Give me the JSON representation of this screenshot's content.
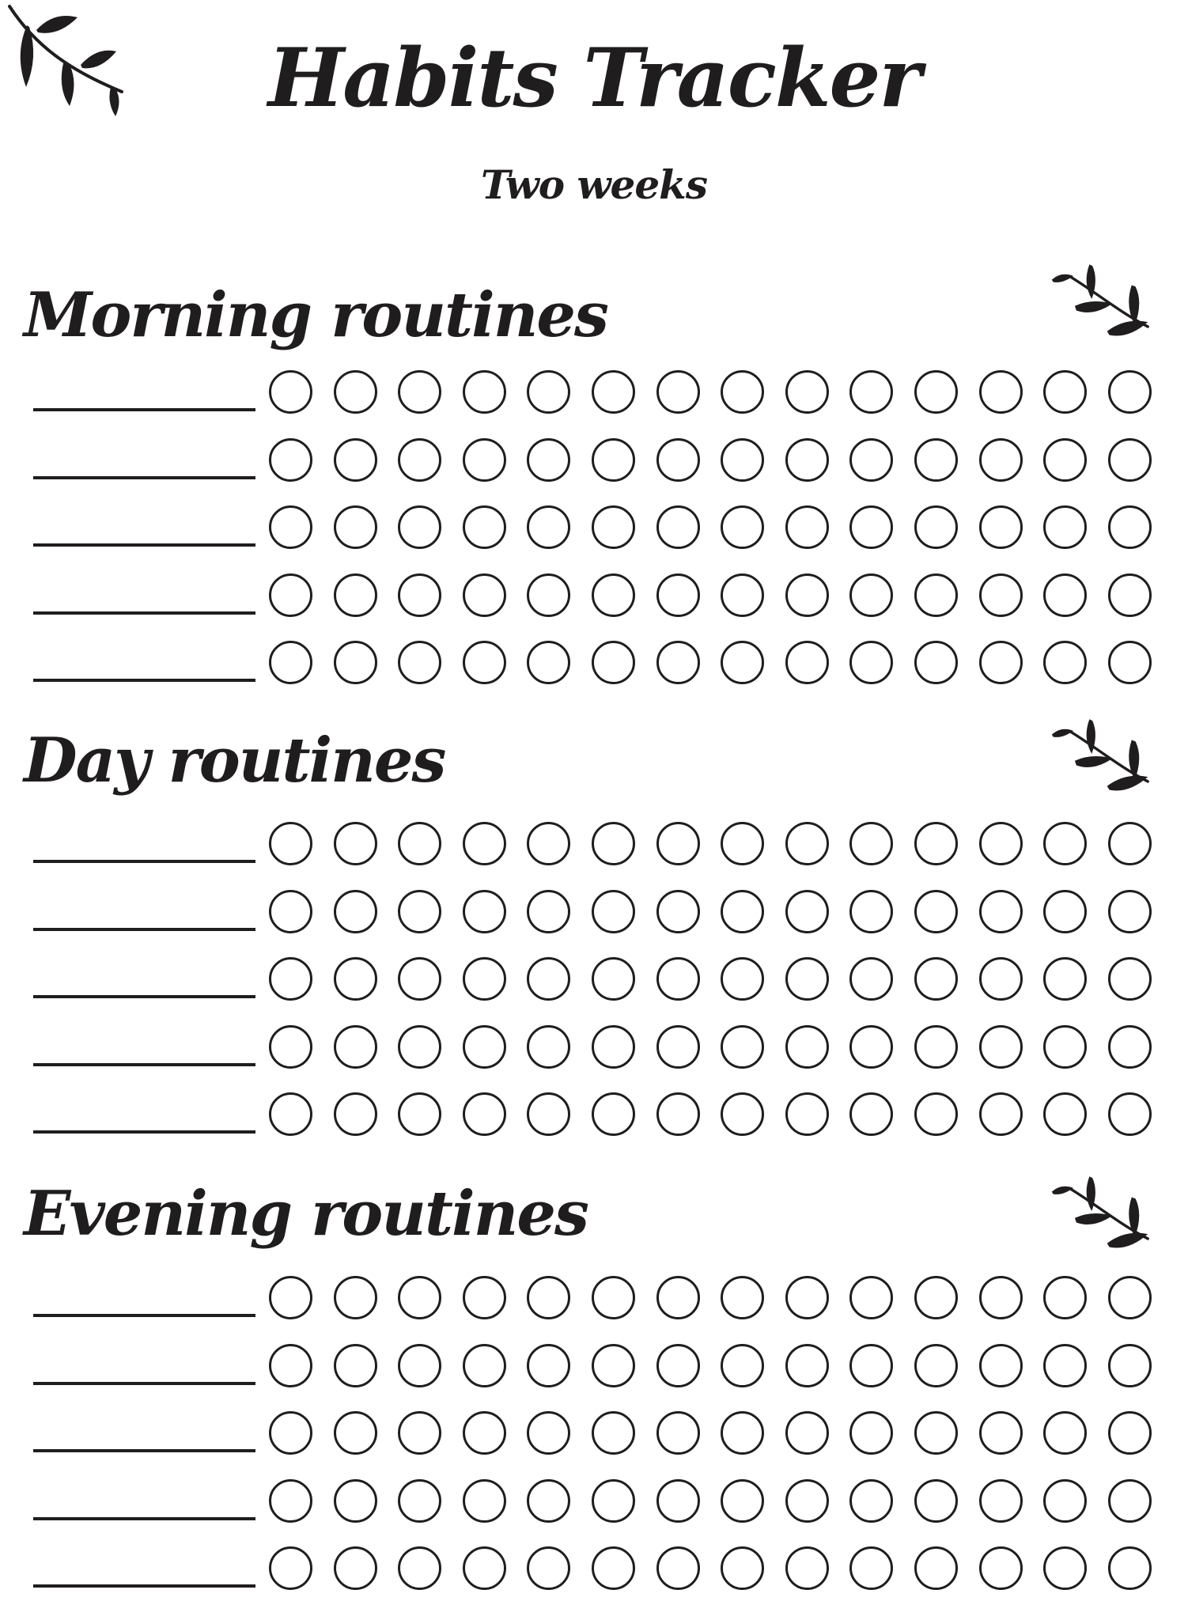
{
  "page": {
    "title": "Habits Tracker",
    "subtitle": "Two weeks"
  },
  "colors": {
    "ink": "#201d1e",
    "paper": "#ffffff"
  },
  "icons": {
    "corner_decoration": "leaf-branch-icon",
    "section_decoration": "leaf-branch-icon"
  },
  "sections": [
    {
      "heading": "Morning routines",
      "rows": 5,
      "days_per_row": 14,
      "habit_names": [
        "",
        "",
        "",
        "",
        ""
      ],
      "circle_state": "all-empty"
    },
    {
      "heading": "Day routines",
      "rows": 5,
      "days_per_row": 14,
      "habit_names": [
        "",
        "",
        "",
        "",
        ""
      ],
      "circle_state": "all-empty"
    },
    {
      "heading": "Evening routines",
      "rows": 5,
      "days_per_row": 14,
      "habit_names": [
        "",
        "",
        "",
        "",
        ""
      ],
      "circle_state": "all-empty"
    }
  ]
}
